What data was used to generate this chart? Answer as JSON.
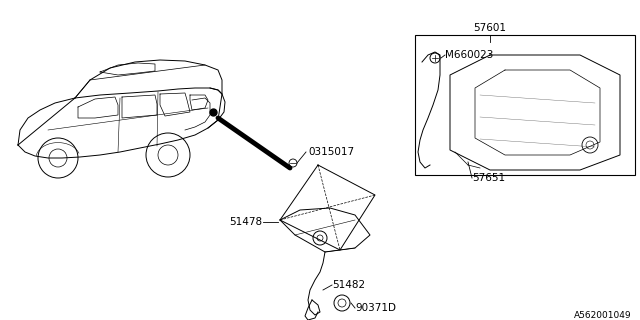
{
  "background_color": "#ffffff",
  "line_color": "#000000",
  "text_color": "#000000",
  "diagram_id": "A562001049",
  "font_size": 7.5
}
